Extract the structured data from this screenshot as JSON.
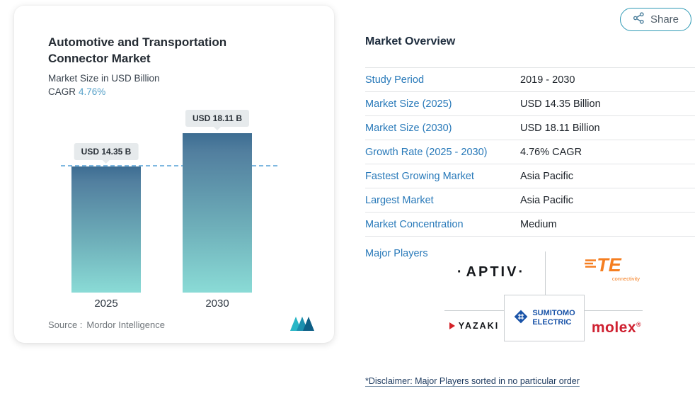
{
  "colors": {
    "accent_blue": "#2879b9",
    "bar_top": "#3d6d92",
    "bar_bottom": "#8adbd6",
    "dashed_line": "#7fb8e0",
    "share_border": "#2f9ab5",
    "te_orange": "#f57e20",
    "molex_red": "#cf2030",
    "sumitomo_blue": "#1953a8"
  },
  "share": {
    "label": "Share",
    "icon": "share-nodes"
  },
  "chart_card": {
    "title": "Automotive and Transportation Connector Market",
    "subtitle": "Market Size in USD Billion",
    "cagr_label": "CAGR",
    "cagr_value": "4.76%",
    "source_label": "Source :",
    "source_value": "Mordor Intelligence"
  },
  "chart_data": {
    "type": "bar",
    "title": "Automotive and Transportation Connector Market",
    "ylabel": "Market Size in USD Billion",
    "categories": [
      "2025",
      "2030"
    ],
    "values": [
      14.35,
      18.11
    ],
    "bar_labels": [
      "USD 14.35 B",
      "USD 18.11 B"
    ],
    "unit": "USD Billion",
    "cagr": "4.76%",
    "dashed_reference": 14.35,
    "ylim": [
      0,
      20
    ],
    "grid": false,
    "legend": false
  },
  "overview": {
    "title": "Market Overview",
    "rows": [
      {
        "label": "Study Period",
        "value": "2019 - 2030"
      },
      {
        "label": "Market Size (2025)",
        "value": "USD 14.35 Billion"
      },
      {
        "label": "Market Size (2030)",
        "value": "USD 18.11 Billion"
      },
      {
        "label": "Growth Rate (2025 - 2030)",
        "value": "4.76% CAGR"
      },
      {
        "label": "Fastest Growing Market",
        "value": "Asia Pacific"
      },
      {
        "label": "Largest Market",
        "value": "Asia Pacific"
      },
      {
        "label": "Market Concentration",
        "value": "Medium"
      }
    ],
    "major_players_label": "Major Players",
    "players": [
      {
        "name": "APTIV"
      },
      {
        "name": "TE",
        "sub": "connectivity"
      },
      {
        "name": "YAZAKI"
      },
      {
        "name": "SUMITOMO",
        "name2": "ELECTRIC"
      },
      {
        "name": "molex",
        "reg": "®"
      }
    ],
    "disclaimer": "*Disclaimer: Major Players sorted in no particular order"
  }
}
